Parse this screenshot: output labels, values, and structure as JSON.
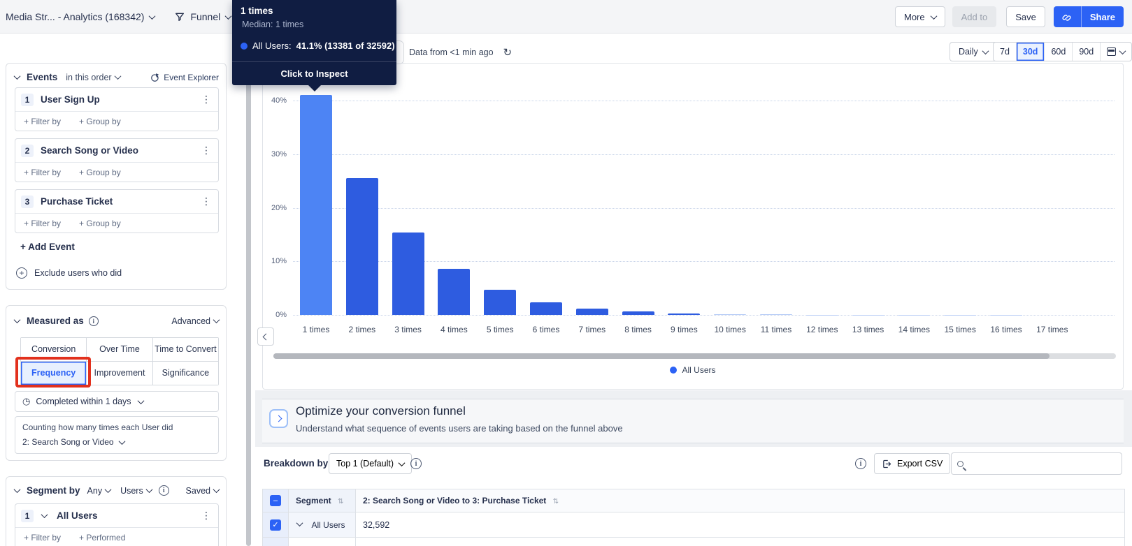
{
  "topbar": {
    "project": "Media Str... - Analytics (168342)",
    "view": "Funnel",
    "more": "More",
    "add_to": "Add to",
    "save": "Save",
    "share": "Share"
  },
  "tooltip": {
    "title": "1 times",
    "median": "Median: 1 times",
    "series_label": "All Users:",
    "series_value": "41.1% (13381 of 32592)",
    "cta": "Click to Inspect"
  },
  "toolbar": {
    "freshness": "Data from <1 min ago",
    "granularity": "Daily",
    "ranges": [
      "7d",
      "30d",
      "60d",
      "90d"
    ],
    "selected_range": "30d"
  },
  "sidebar": {
    "events": {
      "title": "Events",
      "order": "in this order",
      "explorer": "Event Explorer",
      "items": [
        {
          "num": "1",
          "name": "User Sign Up"
        },
        {
          "num": "2",
          "name": "Search Song or Video"
        },
        {
          "num": "3",
          "name": "Purchase Ticket"
        }
      ],
      "filter_by": "+ Filter by",
      "group_by": "+ Group by",
      "add_event": "+ Add Event",
      "exclude": "Exclude users who did"
    },
    "measured": {
      "title": "Measured as",
      "advanced": "Advanced",
      "tabs": [
        "Conversion",
        "Over Time",
        "Time to Convert",
        "Frequency",
        "Improvement",
        "Significance"
      ],
      "selected_tab": "Frequency",
      "completed": "Completed within 1 days",
      "counting": "Counting how many times each User did",
      "counting_event": "2: Search Song or Video"
    },
    "segment": {
      "title": "Segment by",
      "any": "Any",
      "users": "Users",
      "saved": "Saved",
      "items": [
        {
          "num": "1",
          "name": "All Users"
        }
      ],
      "filter_by": "+ Filter by",
      "performed": "+ Performed"
    }
  },
  "chart_data": {
    "type": "bar",
    "title": "",
    "xlabel": "",
    "ylabel": "",
    "categories": [
      "1 times",
      "2 times",
      "3 times",
      "4 times",
      "5 times",
      "6 times",
      "7 times",
      "8 times",
      "9 times",
      "10 times",
      "11 times",
      "12 times",
      "13 times",
      "14 times",
      "15 times",
      "16 times",
      "17 times"
    ],
    "values": [
      41.1,
      25.6,
      15.4,
      8.6,
      4.7,
      2.4,
      1.2,
      0.6,
      0.32,
      0.18,
      0.1,
      0.05,
      0.04,
      0.03,
      0.02,
      0.02,
      0.01
    ],
    "series_name": "All Users",
    "yticks": [
      "0%",
      "10%",
      "20%",
      "30%",
      "40%"
    ],
    "ylim": [
      0,
      43
    ],
    "grid": "dotted horizontal",
    "legend_position": "bottom center",
    "highlighted_bar": "1 times",
    "bar_color": "#2e5ce0",
    "highlight_color": "#4d84f4",
    "faint_color": "#b8cdf6"
  },
  "legend": {
    "series": "All Users"
  },
  "optimize": {
    "title": "Optimize your conversion funnel",
    "subtitle": "Understand what sequence of events users are taking based on the funnel above"
  },
  "breakdown": {
    "label": "Breakdown by:",
    "top_selector": "Top 1 (Default)",
    "export": "Export CSV",
    "columns": [
      "Segment",
      "2: Search Song or Video to 3: Purchase Ticket"
    ],
    "rows": [
      {
        "segment": "All Users",
        "value": "32,592"
      }
    ]
  },
  "colors": {
    "accent": "#2c62f5",
    "tooltip_bg": "#101d42",
    "annotation": "#e2311d"
  }
}
